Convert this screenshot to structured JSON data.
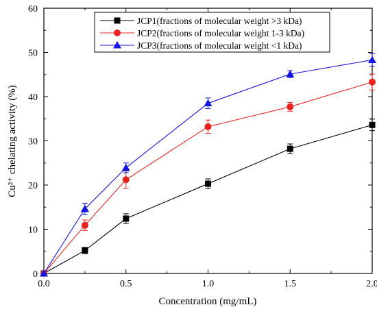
{
  "chart_data": {
    "type": "line",
    "xlabel": "Concentration (mg/mL)",
    "ylabel": "Cu²⁺ chelating activity (%)",
    "xlim": [
      0.0,
      2.0
    ],
    "ylim": [
      0,
      60
    ],
    "xticks": [
      "0.0",
      "0.5",
      "1.0",
      "1.5",
      "2.0"
    ],
    "yticks": [
      "0",
      "10",
      "20",
      "30",
      "40",
      "50",
      "60"
    ],
    "grid": false,
    "legend_position": "top-center",
    "x": [
      0,
      0.25,
      0.5,
      1.0,
      1.5,
      2.0
    ],
    "series": [
      {
        "name": "JCP1(fractions of molecular weight >3 kDa)",
        "color": "#000000",
        "marker": "square",
        "values": [
          0,
          5.2,
          12.4,
          20.3,
          28.2,
          33.6
        ],
        "errors": [
          0,
          0.7,
          1.1,
          1.1,
          1.1,
          1.3
        ]
      },
      {
        "name": "JCP2(fractions of molecular weight 1-3 kDa)",
        "color": "#e8231f",
        "marker": "circle",
        "values": [
          0,
          10.9,
          21.2,
          33.2,
          37.7,
          43.3
        ],
        "errors": [
          0,
          1.2,
          2.0,
          1.5,
          1.0,
          1.8
        ]
      },
      {
        "name": "JCP3(fractions of molecular weight <1 kDa)",
        "color": "#1515e0",
        "marker": "triangle",
        "values": [
          0,
          14.6,
          23.9,
          38.5,
          45.1,
          48.3
        ],
        "errors": [
          0,
          1.3,
          1.1,
          1.2,
          0.8,
          1.4
        ]
      }
    ]
  }
}
